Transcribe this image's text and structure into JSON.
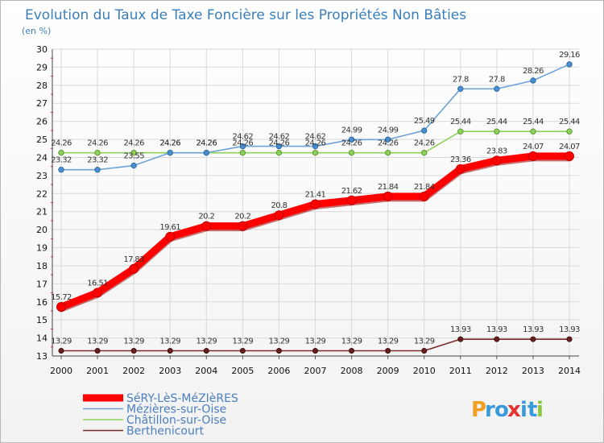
{
  "chart_data": {
    "type": "line",
    "title": "Evolution du Taux de Taxe Foncière sur les Propriétés Non Bâties",
    "subtitle": "(en %)",
    "xlabel": "",
    "ylabel": "",
    "categories": [
      "2000",
      "2001",
      "2002",
      "2003",
      "2004",
      "2005",
      "2006",
      "2007",
      "2008",
      "2009",
      "2010",
      "2011",
      "2012",
      "2013",
      "2014"
    ],
    "yticks": [
      "13",
      "14",
      "15",
      "16",
      "17",
      "18",
      "19",
      "20",
      "21",
      "22",
      "23",
      "24",
      "25",
      "26",
      "27",
      "28",
      "29",
      "30"
    ],
    "ylim": [
      13,
      30
    ],
    "grid": true,
    "legend_position": "bottom-left",
    "series": [
      {
        "name": "SéRY-LèS-MéZIèRES",
        "color": "#ff0000",
        "values": [
          15.72,
          16.51,
          17.83,
          19.61,
          20.2,
          20.2,
          20.8,
          21.41,
          21.62,
          21.84,
          21.84,
          23.36,
          23.83,
          24.07,
          24.07
        ],
        "labels": [
          "15.72",
          "16.51",
          "17.83",
          "19.61",
          "20.2",
          "20.2",
          "20.8",
          "21.41",
          "21.62",
          "21.84",
          "21.84",
          "23.36",
          "23.83",
          "24.07",
          "24.07"
        ]
      },
      {
        "name": "Mézières-sur-Oise",
        "color": "#6fa2d6",
        "values": [
          23.32,
          23.32,
          23.55,
          24.26,
          24.26,
          24.62,
          24.62,
          24.62,
          24.99,
          24.99,
          25.49,
          27.8,
          27.8,
          28.26,
          29.16
        ],
        "labels": [
          "23.32",
          "23.32",
          "23.55",
          "24.26",
          "24.26",
          "24.62",
          "24.62",
          "24.62",
          "24.99",
          "24.99",
          "25.49",
          "27.8",
          "27.8",
          "28.26",
          "29.16"
        ]
      },
      {
        "name": "Châtillon-sur-Oise",
        "color": "#8fd15c",
        "values": [
          24.26,
          24.26,
          24.26,
          24.26,
          24.26,
          24.26,
          24.26,
          24.26,
          24.26,
          24.26,
          24.26,
          25.44,
          25.44,
          25.44,
          25.44
        ],
        "labels": [
          "24.26",
          "24.26",
          "24.26",
          "24.26",
          "24.26",
          "24.26",
          "24.26",
          "24.26",
          "24.26",
          "24.26",
          "24.26",
          "25.44",
          "25.44",
          "25.44",
          "25.44"
        ]
      },
      {
        "name": "Berthenicourt",
        "color": "#7a2a2a",
        "values": [
          13.29,
          13.29,
          13.29,
          13.29,
          13.29,
          13.29,
          13.29,
          13.29,
          13.29,
          13.29,
          13.29,
          13.93,
          13.93,
          13.93,
          13.93
        ],
        "labels": [
          "13.29",
          "13.29",
          "13.29",
          "13.29",
          "13.29",
          "13.29",
          "13.29",
          "13.29",
          "13.29",
          "13.29",
          "13.29",
          "13.93",
          "13.93",
          "13.93",
          "13.93"
        ]
      }
    ]
  },
  "brand": {
    "letters": [
      "P",
      "r",
      "o",
      "x",
      "i",
      "t",
      "i"
    ],
    "colors": [
      "#f0a020",
      "#3a9ad9",
      "#3a9ad9",
      "#e53030",
      "#3a9ad9",
      "#3a9ad9",
      "#8cc63f"
    ]
  }
}
